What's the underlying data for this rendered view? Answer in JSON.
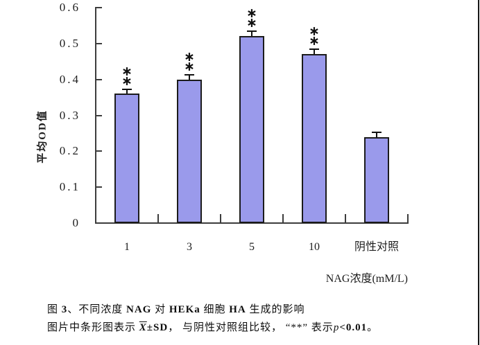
{
  "chart_data": {
    "type": "bar",
    "title": "",
    "categories": [
      "1",
      "3",
      "5",
      "10",
      "阴性对照"
    ],
    "values": [
      0.36,
      0.4,
      0.52,
      0.47,
      0.24
    ],
    "errors": [
      0.012,
      0.012,
      0.015,
      0.014,
      0.012
    ],
    "significance": [
      "**",
      "**",
      "**",
      "**",
      ""
    ],
    "xlabel": "NAG浓度(mM/L)",
    "ylabel": "平均OD值",
    "ylim": [
      0,
      0.6
    ],
    "yticks": [
      0,
      0.1,
      0.2,
      0.3,
      0.4,
      0.5,
      0.6
    ],
    "ytick_labels": [
      "0",
      "0.1",
      "0.2",
      "0.3",
      "0.4",
      "0.5",
      "0.6"
    ],
    "grid": false,
    "legend": "none",
    "bar_color": "#9A9AEB",
    "bar_border_color": "#1B1B1B",
    "axis_color": "#3C3C3C"
  },
  "caption": {
    "line1_segments": [
      {
        "t": "图 "
      },
      {
        "t": "3",
        "b": 1
      },
      {
        "t": "、不同浓度 "
      },
      {
        "t": "NAG",
        "b": 1
      },
      {
        "t": " 对 "
      },
      {
        "t": "HEKa",
        "b": 1
      },
      {
        "t": " 细胞 "
      },
      {
        "t": "HA",
        "b": 1
      },
      {
        "t": " 生成的影响"
      }
    ],
    "line2_segments": [
      {
        "t": "图片中条形图表示 "
      },
      {
        "t": "X",
        "xbar": 1
      },
      {
        "t": "±SD",
        "b": 1
      },
      {
        "t": "， 与阴性对照组比较， "
      },
      {
        "t": "“**”"
      },
      {
        "t": " 表示"
      },
      {
        "t": "p",
        "i": 1
      },
      {
        "t": "<0.01",
        "b": 1
      },
      {
        "t": "。"
      }
    ]
  }
}
